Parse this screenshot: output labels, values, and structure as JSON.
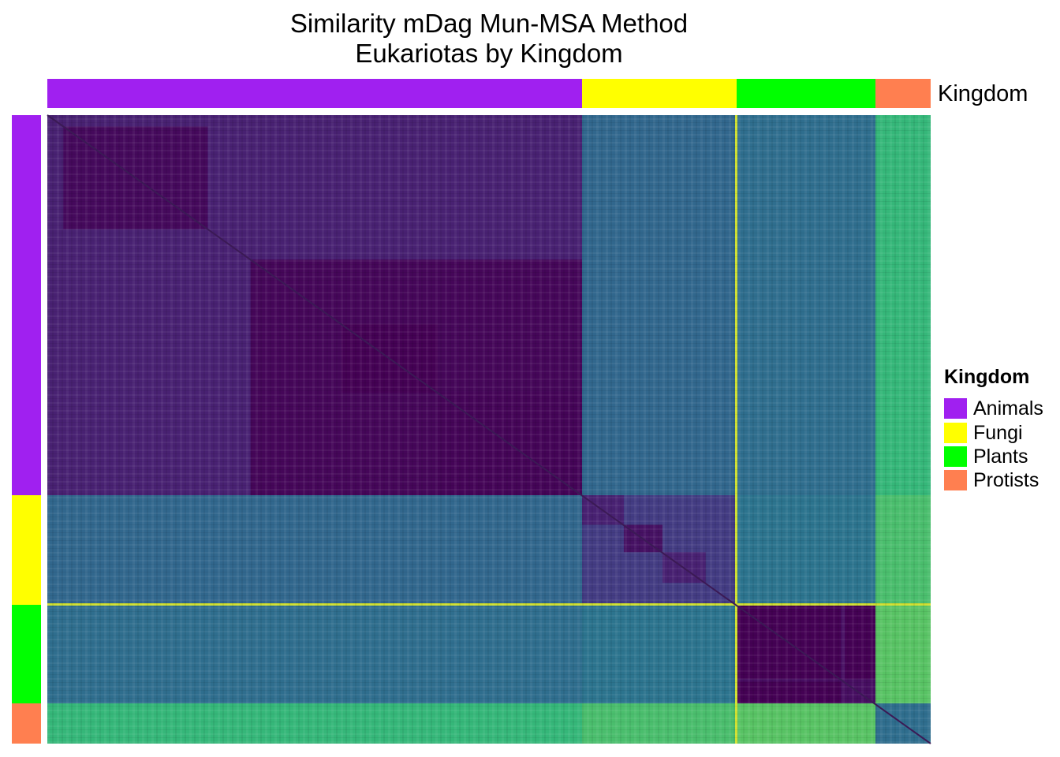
{
  "chart_data": {
    "type": "heatmap",
    "title": "Similarity mDag Mun-MSA Method",
    "subtitle": "Eukariotas by Kingdom",
    "annotation_label": "Kingdom",
    "legend": {
      "title": "Kingdom",
      "placement": "right",
      "items": [
        {
          "label": "Animals",
          "color": "#A020F0"
        },
        {
          "label": "Fungi",
          "color": "#FFFF00"
        },
        {
          "label": "Plants",
          "color": "#00FF00"
        },
        {
          "label": "Protists",
          "color": "#FF7F50"
        }
      ]
    },
    "groups": [
      {
        "name": "Animals",
        "fraction": 0.605
      },
      {
        "name": "Fungi",
        "fraction": 0.175
      },
      {
        "name": "Plants",
        "fraction": 0.157
      },
      {
        "name": "Protists",
        "fraction": 0.063
      }
    ],
    "colormap": "viridis",
    "similarity_blocks": [
      {
        "groups": [
          "Animals",
          "Animals"
        ],
        "level": 0.12
      },
      {
        "groups": [
          "Fungi",
          "Fungi"
        ],
        "level": 0.22
      },
      {
        "groups": [
          "Plants",
          "Plants"
        ],
        "level": 0.05
      },
      {
        "groups": [
          "Protists",
          "Protists"
        ],
        "level": 0.45
      },
      {
        "groups": [
          "Animals",
          "Fungi"
        ],
        "level": 0.42
      },
      {
        "groups": [
          "Animals",
          "Plants"
        ],
        "level": 0.45
      },
      {
        "groups": [
          "Animals",
          "Protists"
        ],
        "level": 0.75
      },
      {
        "groups": [
          "Fungi",
          "Plants"
        ],
        "level": 0.48
      },
      {
        "groups": [
          "Fungi",
          "Protists"
        ],
        "level": 0.78
      },
      {
        "groups": [
          "Plants",
          "Protists"
        ],
        "level": 0.8
      }
    ]
  }
}
